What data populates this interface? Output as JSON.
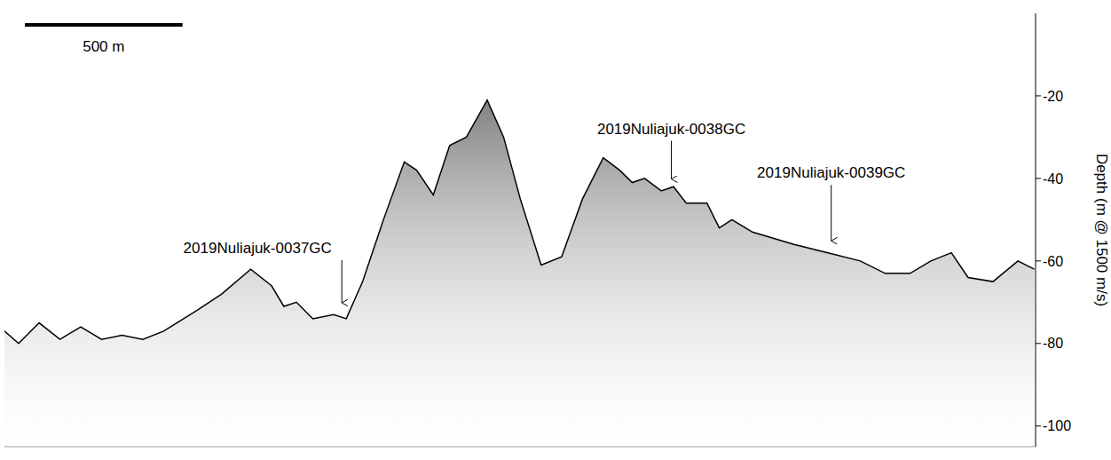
{
  "chart_data": {
    "type": "area",
    "y_label": "Depth (m @ 1500 m/s)",
    "x": [
      0,
      45,
      110,
      176,
      242,
      308,
      373,
      439,
      505,
      610,
      689,
      781,
      847,
      886,
      926,
      978,
      1044,
      1084,
      1136,
      1202,
      1268,
      1307,
      1360,
      1412,
      1465,
      1531,
      1583,
      1636,
      1702,
      1767,
      1833,
      1899,
      1951,
      1991,
      2030,
      2083,
      2122,
      2162,
      2228,
      2267,
      2307,
      2372,
      2504,
      2609,
      2714,
      2793,
      2872,
      2938,
      3003,
      3056,
      3135,
      3214,
      3266
    ],
    "values": [
      -77,
      -80,
      -75,
      -79,
      -76,
      -79,
      -78,
      -79,
      -77,
      -72,
      -68,
      -62,
      -66,
      -71,
      -70,
      -74,
      -73,
      -74,
      -65,
      -50,
      -36,
      -38,
      -44,
      -32,
      -30,
      -21,
      -30,
      -45,
      -61,
      -59,
      -45,
      -35,
      -38,
      -41,
      -40,
      -43,
      -42,
      -46,
      -46,
      -52,
      -50,
      -53,
      -56,
      -58,
      -60,
      -63,
      -63,
      -60,
      -58,
      -64,
      -65,
      -60,
      -62
    ],
    "color": "#000000",
    "xlim": [
      0,
      3270
    ],
    "ylim": [
      -105,
      0
    ],
    "yticks": [
      -100,
      -80,
      -60,
      -40,
      -20
    ],
    "tick_labels": "y",
    "grid": false,
    "scale_bar": {
      "value": 500,
      "label": "500 m"
    },
    "annotations": [
      {
        "text": "2019Nuliajuk-0037GC",
        "x": 1070,
        "y": -71
      },
      {
        "text": "2019Nuliajuk-0038GC",
        "x": 2115,
        "y": -41
      },
      {
        "text": "2019Nuliajuk-0039GC",
        "x": 2622,
        "y": -56
      }
    ]
  }
}
